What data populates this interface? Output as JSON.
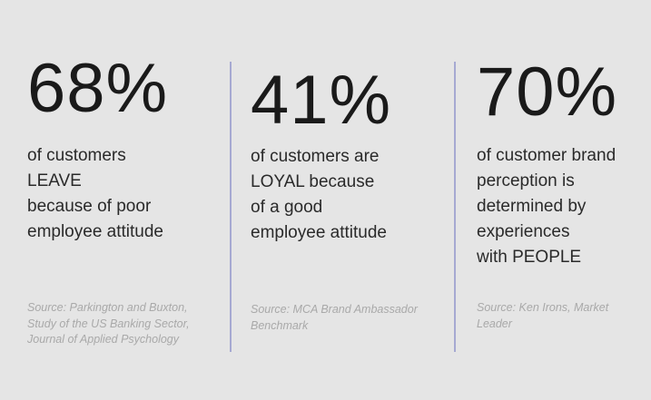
{
  "stats": [
    {
      "number": "68%",
      "lines": [
        "of customers",
        "LEAVE",
        "because of poor",
        "employee attitude"
      ],
      "source_lines": [
        "Source: Parkington and Buxton,",
        "Study of the US Banking Sector,",
        "Journal of Applied Psychology"
      ]
    },
    {
      "number": "41%",
      "lines": [
        "of customers are",
        "LOYAL because",
        "of a good",
        "employee attitude"
      ],
      "source_lines": [
        "Source: MCA Brand Ambassador",
        "Benchmark"
      ]
    },
    {
      "number": "70%",
      "lines": [
        "of customer brand",
        "perception is",
        "determined by",
        "experiences",
        "with PEOPLE"
      ],
      "source_lines": [
        "Source: Ken Irons, Market",
        "Leader"
      ]
    }
  ],
  "colors": {
    "background": "#e5e5e5",
    "divider": "#a6a9d2",
    "source_text": "#a9a9a9"
  }
}
